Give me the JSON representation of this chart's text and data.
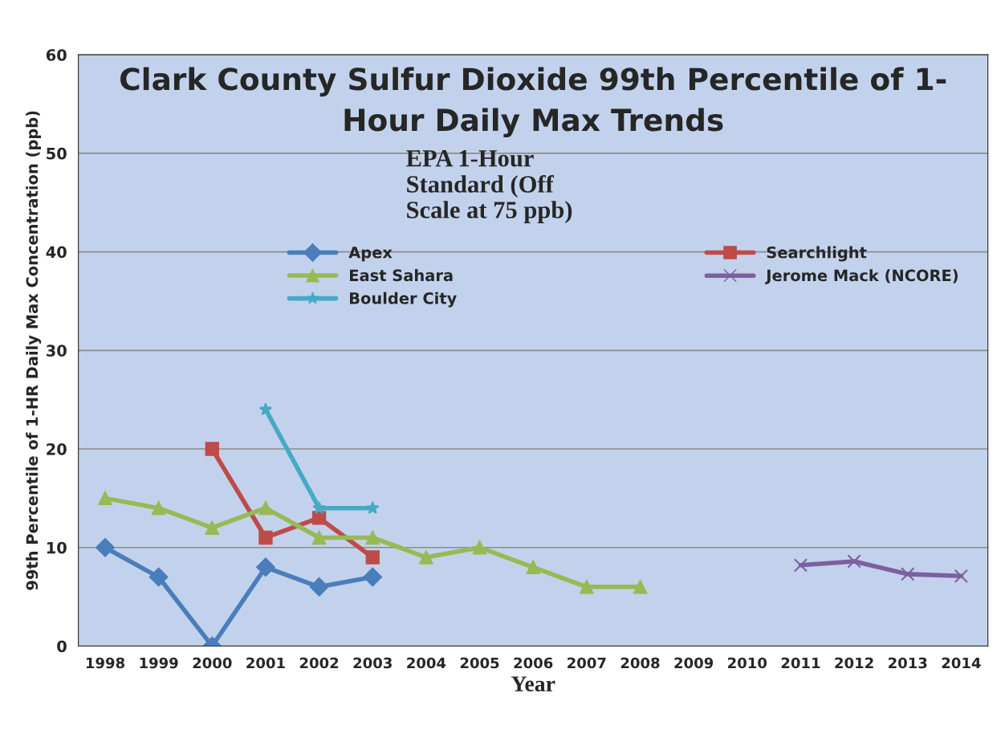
{
  "chart_data": {
    "type": "line",
    "title": "Clark County Sulfur Dioxide 99th Percentile of 1-\nHour Daily Max Trends",
    "xlabel": "Year",
    "ylabel": "99th Percentile of 1-HR Daily Max Concentration (ppb)",
    "categories": [
      "1998",
      "1999",
      "2000",
      "2001",
      "2002",
      "2003",
      "2004",
      "2005",
      "2006",
      "2007",
      "2008",
      "2009",
      "2010",
      "2011",
      "2012",
      "2013",
      "2014"
    ],
    "series": [
      {
        "name": "Apex",
        "color": "#4a7ebb",
        "marker": "diamond",
        "values": [
          10,
          7,
          0,
          8,
          6,
          7,
          null,
          null,
          null,
          null,
          null,
          null,
          null,
          null,
          null,
          null,
          null
        ]
      },
      {
        "name": "Searchlight",
        "color": "#be4b48",
        "marker": "square",
        "values": [
          null,
          null,
          20,
          11,
          13,
          9,
          null,
          null,
          null,
          null,
          null,
          null,
          null,
          null,
          null,
          null,
          null
        ]
      },
      {
        "name": "East Sahara",
        "color": "#98b954",
        "marker": "triangle",
        "values": [
          15,
          14,
          12,
          14,
          11,
          11,
          9,
          10,
          8,
          6,
          6,
          null,
          null,
          null,
          null,
          null,
          null
        ]
      },
      {
        "name": "Jerome Mack (NCORE)",
        "color": "#7d60a0",
        "marker": "cross",
        "values": [
          null,
          null,
          null,
          null,
          null,
          null,
          null,
          null,
          null,
          null,
          null,
          null,
          null,
          8.2,
          8.6,
          7.3,
          7.1
        ]
      },
      {
        "name": "Boulder City",
        "color": "#46aac5",
        "marker": "star",
        "values": [
          null,
          null,
          null,
          24,
          14,
          14,
          null,
          null,
          null,
          null,
          null,
          null,
          null,
          null,
          null,
          null,
          null
        ]
      }
    ],
    "annotations": [
      "EPA 1-Hour\nStandard (Off\nScale at 75 ppb)"
    ],
    "ylim": [
      0,
      60
    ],
    "yticks": [
      0,
      10,
      20,
      30,
      40,
      50,
      60
    ],
    "grid": "y",
    "legend": "top",
    "line_style": "solid"
  }
}
